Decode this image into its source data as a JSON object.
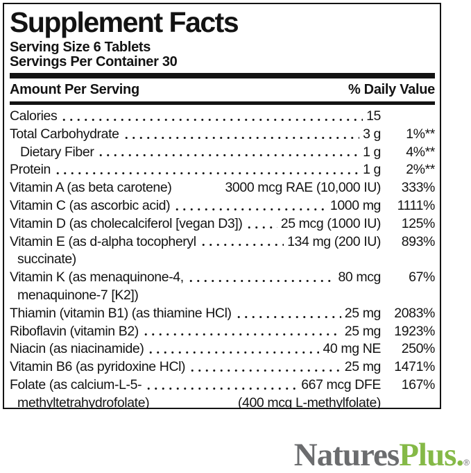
{
  "panel": {
    "title": "Supplement Facts",
    "serving_size": "Serving Size 6 Tablets",
    "servings_per_container": "Servings Per Container 30",
    "columns": {
      "amount": "Amount Per Serving",
      "daily_value": "% Daily Value"
    },
    "rows": [
      {
        "name": "Calories",
        "amount": "15",
        "dv": "",
        "dots": true
      },
      {
        "name": "Total Carbohydrate",
        "amount": "3 g",
        "dv": "1%**",
        "dots": true
      },
      {
        "name": "Dietary Fiber",
        "amount": "1 g",
        "dv": "4%**",
        "dots": true,
        "indent": true
      },
      {
        "name": "Protein",
        "amount": "1 g",
        "dv": "2%**",
        "dots": true
      },
      {
        "name": "Vitamin A (as beta carotene)",
        "amount": "3000 mcg RAE (10,000 IU)",
        "dv": "333%",
        "dots": false
      },
      {
        "name": "Vitamin C (as ascorbic acid)",
        "amount": "1000 mg",
        "dv": "1111%",
        "dots": true
      },
      {
        "name": "Vitamin D (as cholecalciferol [vegan D3])",
        "amount": "25 mcg (1000 IU)",
        "dv": "125%",
        "dots": true
      },
      {
        "name": "Vitamin E (as d-alpha tocopheryl",
        "amount": "134 mg (200 IU)",
        "dv": "893%",
        "dots": true,
        "cont_left": "succinate)"
      },
      {
        "name": "Vitamin K (as menaquinone-4,",
        "amount": "80 mcg",
        "dv": "67%",
        "dots": true,
        "cont_left": "menaquinone-7 [K2])"
      },
      {
        "name": "Thiamin (vitamin B1) (as thiamine HCl)",
        "amount": "25 mg",
        "dv": "2083%",
        "dots": true
      },
      {
        "name": "Riboflavin (vitamin B2)",
        "amount": "25 mg",
        "dv": "1923%",
        "dots": true
      },
      {
        "name": "Niacin (as niacinamide)",
        "amount": "40 mg NE",
        "dv": "250%",
        "dots": true
      },
      {
        "name": "Vitamin B6 (as pyridoxine HCl)",
        "amount": "25 mg",
        "dv": "1471%",
        "dots": true
      },
      {
        "name": "Folate (as calcium-L-5-",
        "amount": "667 mcg DFE",
        "dv": "167%",
        "dots": true,
        "cont_left": "methyltetrahydrofolate)",
        "cont_right": "(400 mcg L-methylfolate)"
      }
    ]
  },
  "brand": {
    "name_gray": "Natures",
    "name_green": "Plus.",
    "registered": "®",
    "gray_color": "#6b6c6e",
    "green_color": "#85b947"
  }
}
